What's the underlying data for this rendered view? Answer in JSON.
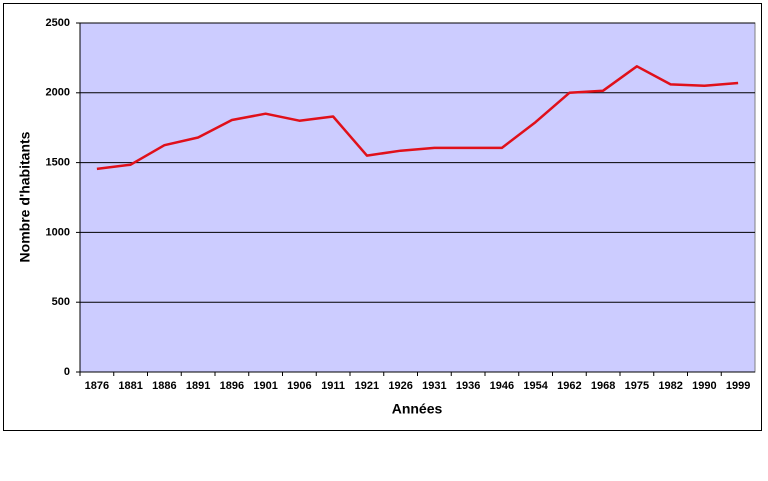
{
  "chart_data": {
    "type": "line",
    "x_label": "Années",
    "y_label": "Nombre d'habitants",
    "categories": [
      "1876",
      "1881",
      "1886",
      "1891",
      "1896",
      "1901",
      "1906",
      "1911",
      "1921",
      "1926",
      "1931",
      "1936",
      "1946",
      "1954",
      "1962",
      "1968",
      "1975",
      "1982",
      "1990",
      "1999"
    ],
    "series": [
      {
        "color": "#e0101a",
        "values": [
          1455,
          1485,
          1625,
          1680,
          1805,
          1850,
          1800,
          1830,
          1550,
          1585,
          1605,
          1605,
          1605,
          1790,
          2000,
          2015,
          2190,
          2060,
          2050,
          2070
        ]
      }
    ],
    "ylim": [
      0,
      2500
    ],
    "yticks": [
      0,
      500,
      1000,
      1500,
      2000,
      2500
    ],
    "grid": true,
    "plot_background": "#ccccff"
  }
}
